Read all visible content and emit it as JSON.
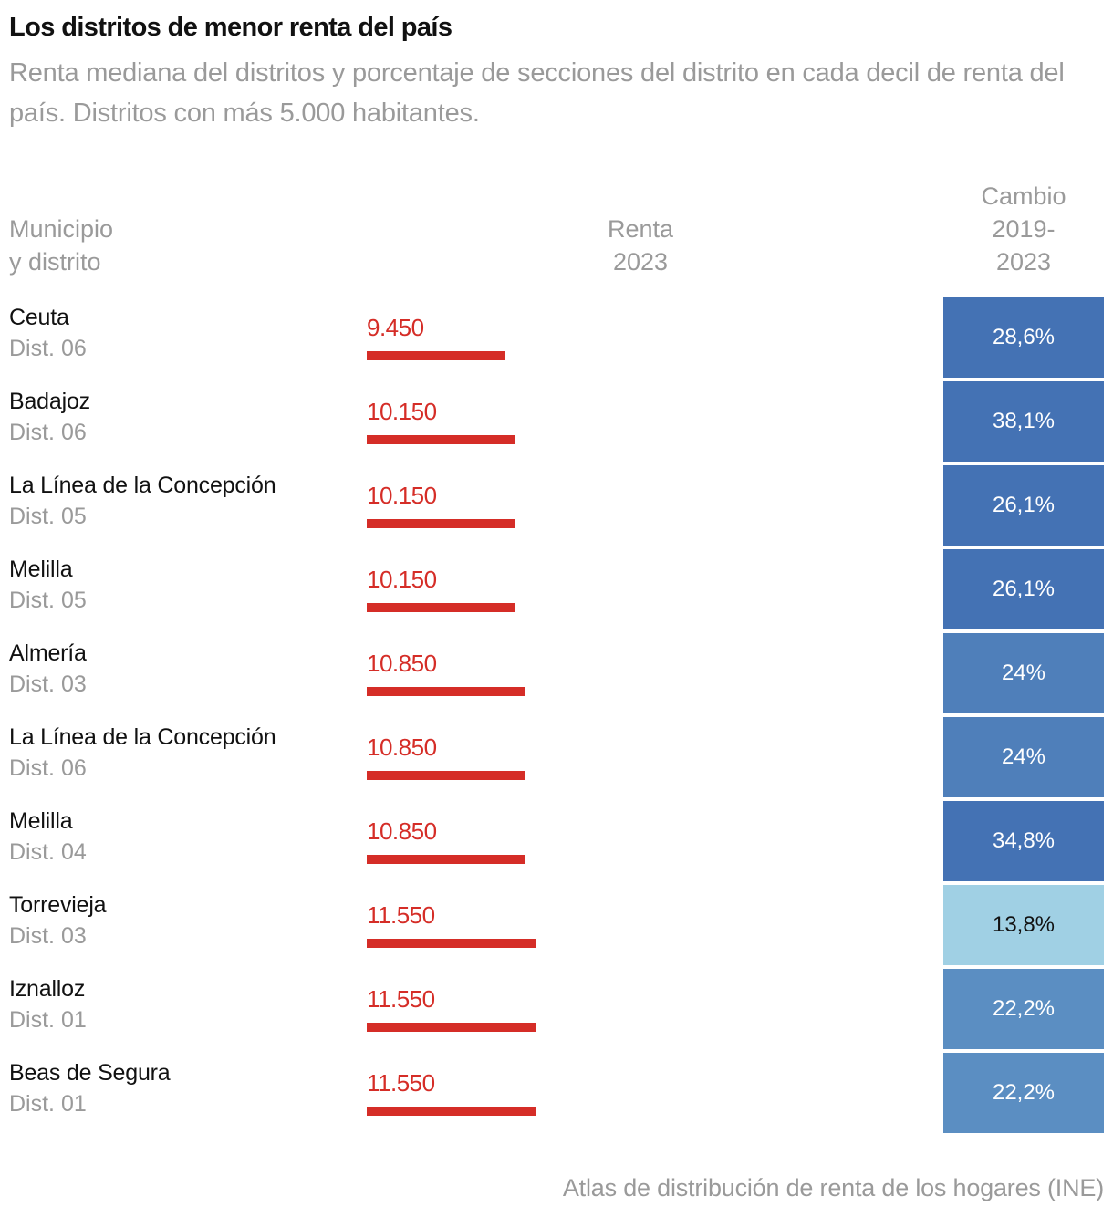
{
  "title": "Los distritos de menor renta del país",
  "subtitle": "Renta mediana del distritos y porcentaje de secciones del distrito en cada decil de renta del país. Distritos con más 5.000 habitantes.",
  "headers": {
    "municipio_line1": "Municipio",
    "municipio_line2": "y distrito",
    "renta_line1": "Renta",
    "renta_line2": "2023",
    "cambio_line1": "Cambio",
    "cambio_line2": "2019-",
    "cambio_line3": "2023"
  },
  "source": "Atlas de distribución de renta de los hogares (INE)",
  "colors": {
    "bar": "#d52d27",
    "cambio_high": "#4472b4",
    "cambio_mid": "#4f7fba",
    "cambio_low_mid": "#5b8ec2",
    "cambio_low": "#a0d0e4"
  },
  "chart_data": {
    "type": "table",
    "title": "Los distritos de menor renta del país",
    "columns": [
      "Municipio y distrito",
      "Renta 2023",
      "Cambio 2019-2023"
    ],
    "bar_scale_min": 0,
    "rows": [
      {
        "municipio": "Ceuta",
        "distrito": "Dist. 06",
        "renta": 9450,
        "renta_label": "9.450",
        "cambio": 28.6,
        "cambio_label": "28,6%",
        "color_key": "cambio_high",
        "text_dark": false
      },
      {
        "municipio": "Badajoz",
        "distrito": "Dist. 06",
        "renta": 10150,
        "renta_label": "10.150",
        "cambio": 38.1,
        "cambio_label": "38,1%",
        "color_key": "cambio_high",
        "text_dark": false
      },
      {
        "municipio": "La Línea de la Concepción",
        "distrito": "Dist. 05",
        "renta": 10150,
        "renta_label": "10.150",
        "cambio": 26.1,
        "cambio_label": "26,1%",
        "color_key": "cambio_high",
        "text_dark": false
      },
      {
        "municipio": "Melilla",
        "distrito": "Dist. 05",
        "renta": 10150,
        "renta_label": "10.150",
        "cambio": 26.1,
        "cambio_label": "26,1%",
        "color_key": "cambio_high",
        "text_dark": false
      },
      {
        "municipio": "Almería",
        "distrito": "Dist. 03",
        "renta": 10850,
        "renta_label": "10.850",
        "cambio": 24,
        "cambio_label": "24%",
        "color_key": "cambio_mid",
        "text_dark": false
      },
      {
        "municipio": "La Línea de la Concepción",
        "distrito": "Dist. 06",
        "renta": 10850,
        "renta_label": "10.850",
        "cambio": 24,
        "cambio_label": "24%",
        "color_key": "cambio_mid",
        "text_dark": false
      },
      {
        "municipio": "Melilla",
        "distrito": "Dist. 04",
        "renta": 10850,
        "renta_label": "10.850",
        "cambio": 34.8,
        "cambio_label": "34,8%",
        "color_key": "cambio_high",
        "text_dark": false
      },
      {
        "municipio": "Torrevieja",
        "distrito": "Dist. 03",
        "renta": 11550,
        "renta_label": "11.550",
        "cambio": 13.8,
        "cambio_label": "13,8%",
        "color_key": "cambio_low",
        "text_dark": true
      },
      {
        "municipio": "Iznalloz",
        "distrito": "Dist. 01",
        "renta": 11550,
        "renta_label": "11.550",
        "cambio": 22.2,
        "cambio_label": "22,2%",
        "color_key": "cambio_low_mid",
        "text_dark": false
      },
      {
        "municipio": "Beas de Segura",
        "distrito": "Dist. 01",
        "renta": 11550,
        "renta_label": "11.550",
        "cambio": 22.2,
        "cambio_label": "22,2%",
        "color_key": "cambio_low_mid",
        "text_dark": false
      }
    ]
  }
}
